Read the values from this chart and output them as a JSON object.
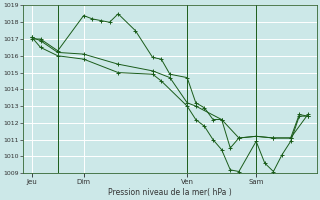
{
  "xlabel": "Pression niveau de la mer( hPa )",
  "ylim": [
    1009,
    1019
  ],
  "yticks": [
    1009,
    1010,
    1011,
    1012,
    1013,
    1014,
    1015,
    1016,
    1017,
    1018,
    1019
  ],
  "bg_color": "#cce8e8",
  "grid_color": "#ffffff",
  "line_color": "#1a5c1a",
  "xtick_labels": [
    "Jeu",
    "Dim",
    "Ven",
    "Sam"
  ],
  "xtick_positions": [
    0.5,
    3.5,
    9.5,
    13.5
  ],
  "vline_positions": [
    2.0,
    9.5,
    13.5
  ],
  "xlim": [
    0,
    17
  ],
  "series1_x": [
    0.5,
    1.0,
    2.0,
    3.5,
    4.0,
    4.5,
    5.0,
    5.5,
    6.5,
    7.5,
    8.0,
    8.5,
    9.5,
    10.0,
    10.5,
    11.0,
    11.5,
    12.0,
    12.5,
    13.5,
    14.5,
    15.5,
    16.0,
    16.5
  ],
  "series1_y": [
    1017.0,
    1017.0,
    1016.3,
    1018.4,
    1018.2,
    1018.1,
    1018.0,
    1018.5,
    1017.5,
    1015.9,
    1015.8,
    1014.9,
    1014.7,
    1013.2,
    1012.9,
    1012.2,
    1012.2,
    1010.5,
    1011.1,
    1011.2,
    1011.1,
    1011.1,
    1012.5,
    1012.4
  ],
  "series2_x": [
    0.5,
    1.0,
    2.0,
    3.5,
    5.5,
    7.5,
    8.5,
    9.5,
    10.0,
    11.5,
    12.5,
    13.5,
    14.5,
    15.5,
    16.5
  ],
  "series2_y": [
    1017.1,
    1016.9,
    1016.2,
    1016.1,
    1015.5,
    1015.1,
    1014.7,
    1013.2,
    1013.0,
    1012.2,
    1011.1,
    1011.2,
    1011.1,
    1011.1,
    1012.5
  ],
  "series3_x": [
    0.5,
    1.0,
    2.0,
    3.5,
    5.5,
    7.5,
    8.0,
    9.5,
    10.0,
    10.5,
    11.0,
    11.5,
    12.0,
    12.5,
    13.5,
    14.0,
    14.5,
    15.0,
    15.5,
    16.0,
    16.5
  ],
  "series3_y": [
    1017.1,
    1016.5,
    1016.0,
    1015.8,
    1015.0,
    1014.9,
    1014.5,
    1013.0,
    1012.2,
    1011.8,
    1011.0,
    1010.4,
    1009.2,
    1009.1,
    1010.9,
    1009.6,
    1009.1,
    1010.1,
    1010.9,
    1012.4,
    1012.4
  ],
  "figsize": [
    3.2,
    2.0
  ],
  "dpi": 100
}
